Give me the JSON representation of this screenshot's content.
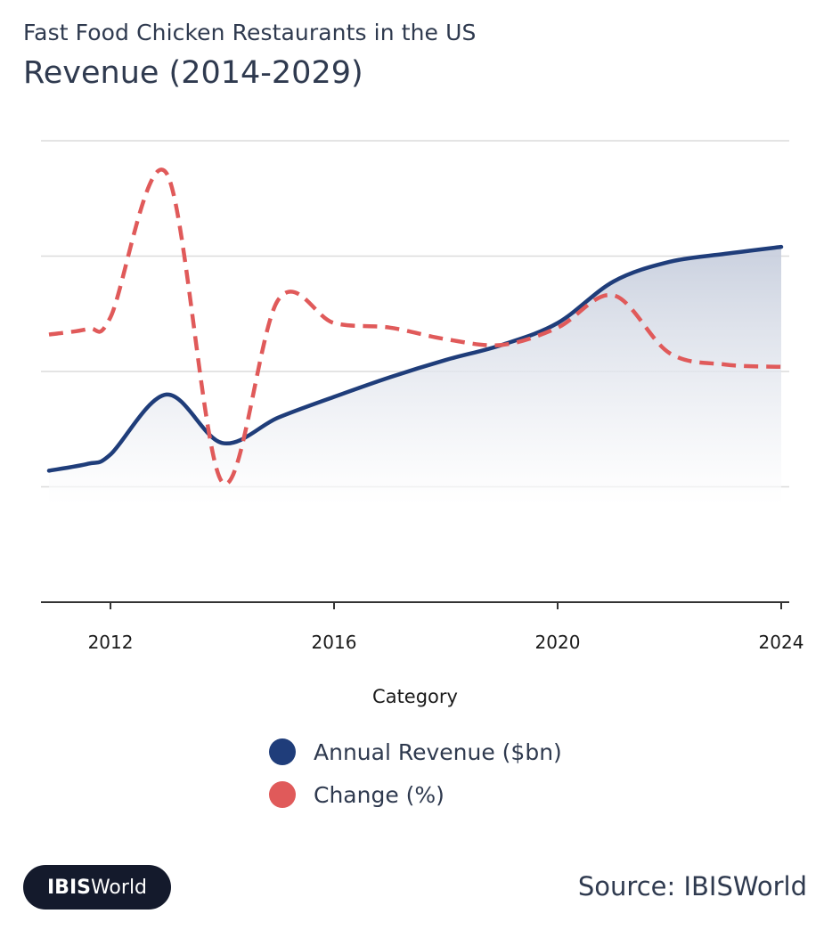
{
  "header": {
    "subtitle": "Fast Food Chicken Restaurants in the US",
    "title": "Revenue (2014-2029)"
  },
  "chart_data": {
    "type": "line",
    "title": "Revenue (2014-2029)",
    "xlabel": "Category",
    "ylabel": "",
    "x_tick_labels": [
      "2012",
      "2016",
      "2020",
      "2024"
    ],
    "x": [
      2010.9,
      2011.6,
      2012.0,
      2013.0,
      2014.0,
      2015.0,
      2016.0,
      2017.0,
      2018.0,
      2019.0,
      2020.0,
      2021.0,
      2022.0,
      2023.0,
      2024.0
    ],
    "xlim": [
      2010.9,
      2024.0
    ],
    "ylim": [
      0,
      4
    ],
    "grid": true,
    "series": [
      {
        "name": "Annual Revenue ($bn)",
        "color": "#1f3d7a",
        "style": "solid",
        "filled": true,
        "values": [
          1.14,
          1.2,
          1.28,
          1.8,
          1.38,
          1.6,
          1.78,
          1.95,
          2.1,
          2.23,
          2.42,
          2.78,
          2.95,
          3.02,
          3.08
        ]
      },
      {
        "name": "Change (%)",
        "color": "#e05a5a",
        "style": "dashed",
        "filled": false,
        "values": [
          2.32,
          2.37,
          2.47,
          3.72,
          1.04,
          2.62,
          2.42,
          2.38,
          2.28,
          2.23,
          2.38,
          2.66,
          2.16,
          2.06,
          2.04
        ]
      }
    ]
  },
  "legend": {
    "items": [
      {
        "label": "Annual Revenue ($bn)",
        "color": "#1f3d7a"
      },
      {
        "label": "Change (%)",
        "color": "#e05a5a"
      }
    ]
  },
  "footer": {
    "logo_bold": "IBIS",
    "logo_regular": "World",
    "source": "Source: IBISWorld"
  }
}
